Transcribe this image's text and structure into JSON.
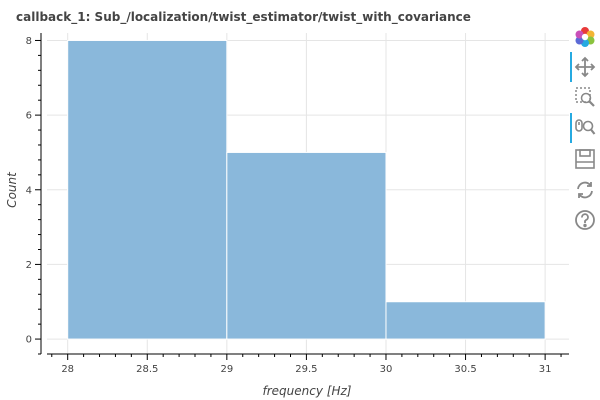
{
  "chart_data": {
    "type": "bar",
    "title": "callback_1: Sub_/localization/twist_estimator/twist_with_covariance",
    "xlabel": "frequency [Hz]",
    "ylabel": "Count",
    "bins": [
      {
        "start": 28,
        "end": 29,
        "count": 8
      },
      {
        "start": 29,
        "end": 30,
        "count": 5
      },
      {
        "start": 30,
        "end": 31,
        "count": 1
      }
    ],
    "xlim": [
      27.87,
      31.15
    ],
    "ylim": [
      -0.4,
      8.2
    ],
    "x_ticks": [
      "28",
      "28.5",
      "29",
      "29.5",
      "30",
      "30.5",
      "31"
    ],
    "y_ticks": [
      "0",
      "2",
      "4",
      "6",
      "8"
    ],
    "grid": true,
    "bar_color": "#8ab8db"
  },
  "toolbar": {
    "tools": [
      {
        "name": "bokeh-logo-icon",
        "active": false
      },
      {
        "name": "pan-icon",
        "active": true
      },
      {
        "name": "box-zoom-icon",
        "active": false
      },
      {
        "name": "wheel-zoom-icon",
        "active": true
      },
      {
        "name": "save-icon",
        "active": false
      },
      {
        "name": "reset-icon",
        "active": false
      },
      {
        "name": "help-icon",
        "active": false
      }
    ]
  }
}
